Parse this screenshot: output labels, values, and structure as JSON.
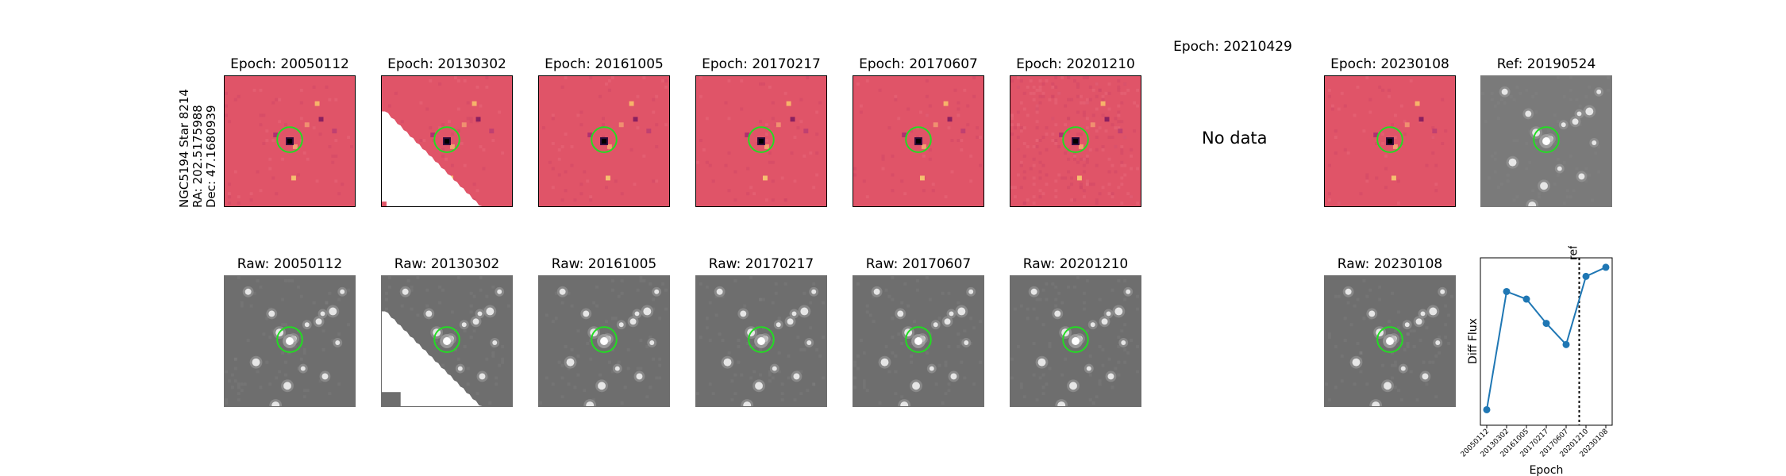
{
  "star_label": {
    "line1": "NGC5194 Star 8214",
    "line2": "RA: 202.5175988",
    "line3": "Dec: 47.1680939"
  },
  "diff_row": [
    {
      "title": "Epoch: 20050112",
      "style": "diff"
    },
    {
      "title": "Epoch: 20130302",
      "style": "diff-partial"
    },
    {
      "title": "Epoch: 20161005",
      "style": "diff"
    },
    {
      "title": "Epoch: 20170217",
      "style": "diff"
    },
    {
      "title": "Epoch: 20170607",
      "style": "diff"
    },
    {
      "title": "Epoch: 20201210",
      "style": "diff-noisy"
    },
    {
      "title": "Epoch: 20210429",
      "style": "nodata",
      "message": "No data"
    },
    {
      "title": "Epoch: 20230108",
      "style": "diff"
    },
    {
      "title": "Ref: 20190524",
      "style": "ref"
    }
  ],
  "raw_row": [
    {
      "title": "Raw: 20050112",
      "style": "raw"
    },
    {
      "title": "Raw: 20130302",
      "style": "raw-partial"
    },
    {
      "title": "Raw: 20161005",
      "style": "raw"
    },
    {
      "title": "Raw: 20170217",
      "style": "raw"
    },
    {
      "title": "Raw: 20170607",
      "style": "raw"
    },
    {
      "title": "Raw: 20201210",
      "style": "raw"
    },
    {
      "title": "Raw: 20230108",
      "style": "raw"
    }
  ],
  "colors": {
    "diff_bg": "#e05468",
    "raw_bg": "#6e6e6e",
    "ref_bg": "#7a7a7a",
    "circle": "#22dd22",
    "series": "#1f77b4"
  },
  "chart_data": {
    "type": "line",
    "x": [
      "20050112",
      "20130302",
      "20161005",
      "20170217",
      "20170607",
      "20201210",
      "20230108"
    ],
    "values": [
      0.05,
      0.83,
      0.78,
      0.62,
      0.48,
      0.93,
      0.99
    ],
    "value_note": "relative position within unlabeled y-axis",
    "xlabel": "Epoch",
    "ylabel": "Diff Flux",
    "ref_marker": {
      "label": "ref",
      "position_between": [
        "20170607",
        "20201210"
      ]
    },
    "marker": "circle"
  }
}
